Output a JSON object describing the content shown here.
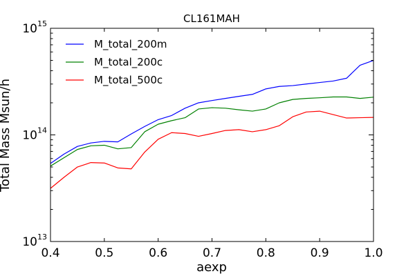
{
  "chart_data": {
    "type": "line",
    "title": "CL161MAH",
    "xlabel": "aexp",
    "ylabel": "Total Mass Msun/h",
    "xlim": [
      0.4,
      1.0
    ],
    "ylim": [
      10000000000000.0,
      1000000000000000.0
    ],
    "yscale": "log",
    "grid": false,
    "legend_position": "top-left",
    "x_ticks": [
      "0.4",
      "0.5",
      "0.6",
      "0.7",
      "0.8",
      "0.9",
      "1.0"
    ],
    "y_ticks": [
      {
        "base": "10",
        "exp": "13",
        "value": 10000000000000.0
      },
      {
        "base": "10",
        "exp": "14",
        "value": 100000000000000.0
      },
      {
        "base": "10",
        "exp": "15",
        "value": 1000000000000000.0
      }
    ],
    "x": [
      0.4,
      0.425,
      0.45,
      0.475,
      0.5,
      0.525,
      0.55,
      0.575,
      0.6,
      0.625,
      0.65,
      0.675,
      0.7,
      0.725,
      0.75,
      0.775,
      0.8,
      0.825,
      0.85,
      0.875,
      0.9,
      0.925,
      0.95,
      0.975,
      1.0
    ],
    "series": [
      {
        "name": "M_total_200m",
        "color": "#0000ff",
        "values": [
          54000000000000.0,
          66000000000000.0,
          78000000000000.0,
          84000000000000.0,
          87000000000000.0,
          86000000000000.0,
          102000000000000.0,
          120000000000000.0,
          139000000000000.0,
          152000000000000.0,
          178000000000000.0,
          200000000000000.0,
          210000000000000.0,
          220000000000000.0,
          230000000000000.0,
          240000000000000.0,
          270000000000000.0,
          285000000000000.0,
          290000000000000.0,
          300000000000000.0,
          310000000000000.0,
          320000000000000.0,
          340000000000000.0,
          450000000000000.0,
          500000000000000.0
        ]
      },
      {
        "name": "M_total_200c",
        "color": "#008000",
        "values": [
          51000000000000.0,
          61000000000000.0,
          73000000000000.0,
          79000000000000.0,
          80000000000000.0,
          74000000000000.0,
          76000000000000.0,
          107000000000000.0,
          126000000000000.0,
          136000000000000.0,
          145000000000000.0,
          175000000000000.0,
          180000000000000.0,
          178000000000000.0,
          172000000000000.0,
          167000000000000.0,
          175000000000000.0,
          200000000000000.0,
          215000000000000.0,
          220000000000000.0,
          223000000000000.0,
          227000000000000.0,
          227000000000000.0,
          220000000000000.0,
          226000000000000.0
        ]
      },
      {
        "name": "M_total_500c",
        "color": "#ff0000",
        "values": [
          31500000000000.0,
          40000000000000.0,
          50000000000000.0,
          55000000000000.0,
          54500000000000.0,
          49000000000000.0,
          48000000000000.0,
          69000000000000.0,
          91000000000000.0,
          105000000000000.0,
          103000000000000.0,
          97000000000000.0,
          103000000000000.0,
          110000000000000.0,
          112000000000000.0,
          107000000000000.0,
          112000000000000.0,
          122000000000000.0,
          148000000000000.0,
          164000000000000.0,
          167000000000000.0,
          155000000000000.0,
          144000000000000.0,
          145000000000000.0,
          146000000000000.0
        ]
      }
    ]
  }
}
